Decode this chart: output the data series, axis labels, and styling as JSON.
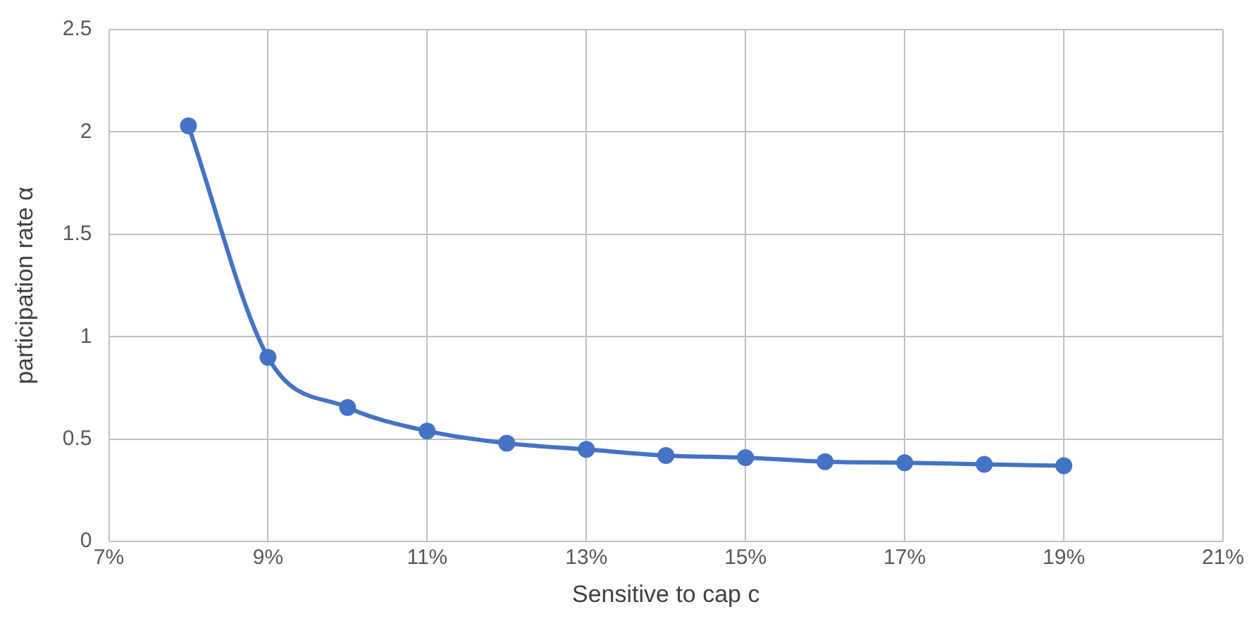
{
  "chart_data": {
    "type": "line",
    "xlabel": "Sensitive to cap c",
    "ylabel": "participation rate α",
    "x": [
      8,
      9,
      10,
      11,
      12,
      13,
      14,
      15,
      16,
      17,
      18,
      19
    ],
    "series": [
      {
        "color": "#4472c4",
        "values": [
          2.03,
          0.9,
          0.655,
          0.54,
          0.48,
          0.45,
          0.42,
          0.41,
          0.39,
          0.385,
          0.377,
          0.37
        ]
      }
    ],
    "xlim": [
      7,
      21
    ],
    "xticks": [
      {
        "value": 7,
        "label": "7%"
      },
      {
        "value": 9,
        "label": "9%"
      },
      {
        "value": 11,
        "label": "11%"
      },
      {
        "value": 13,
        "label": "13%"
      },
      {
        "value": 15,
        "label": "15%"
      },
      {
        "value": 17,
        "label": "17%"
      },
      {
        "value": 19,
        "label": "19%"
      },
      {
        "value": 21,
        "label": "21%"
      }
    ],
    "ylim": [
      0,
      2.5
    ],
    "yticks": [
      0,
      0.5,
      1,
      1.5,
      2,
      2.5
    ],
    "grid": true,
    "legend": false,
    "marker": "circle",
    "line_style": "solid"
  }
}
